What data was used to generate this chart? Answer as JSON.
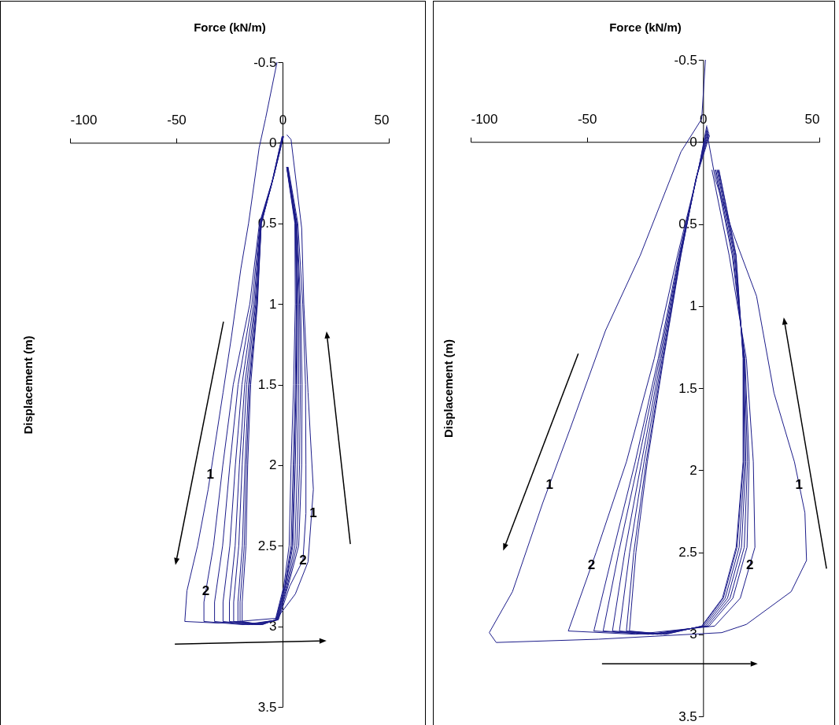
{
  "chart_data": [
    {
      "type": "line",
      "xlabel": "Force (kN/m)",
      "ylabel": "Displacement (m)",
      "xlim": [
        -100,
        50
      ],
      "ylim": [
        3.5,
        -0.5
      ],
      "xticks": [
        -100,
        -50,
        0,
        50
      ],
      "yticks": [
        -0.5,
        0,
        0.5,
        1,
        1.5,
        2,
        2.5,
        3,
        3.5
      ],
      "series": [
        {
          "color": "#1c1c8a",
          "x": [
            -2.6,
            -8,
            -11,
            -16,
            -19.6,
            -24,
            -28,
            -35,
            -40,
            -45,
            -46,
            -30,
            -2.6,
            6,
            12,
            14.5,
            13,
            12,
            10,
            9,
            4,
            2
          ],
          "values": [
            -0.5,
            -0.15,
            0.03,
            0.5,
            0.78,
            1.2,
            1.55,
            2.15,
            2.5,
            2.78,
            2.97,
            2.98,
            2.95,
            2.8,
            2.6,
            2.15,
            1.8,
            1.55,
            1.0,
            0.53,
            -0.02,
            -0.05
          ]
        },
        {
          "color": "#1c1c8a",
          "x": [
            0.5,
            -4,
            -10.9,
            -15.4,
            -23.2,
            -28.1,
            -32.5,
            -37,
            -37,
            -18.5,
            -2,
            3.4,
            9.6,
            11,
            11,
            10.8,
            9.5,
            7.2,
            2.6
          ],
          "values": [
            -0.04,
            0.2,
            0.5,
            1.0,
            1.5,
            2.0,
            2.5,
            2.85,
            2.97,
            2.99,
            2.96,
            2.75,
            2.59,
            2.3,
            2.0,
            1.5,
            1.0,
            0.5,
            0.15
          ]
        },
        {
          "color": "#1c1c8a",
          "x": [
            0.4,
            -4.2,
            -10.6,
            -14.4,
            -20.9,
            -24.8,
            -28.2,
            -32,
            -32,
            -16,
            -2.2,
            2.6,
            7.6,
            9,
            9.2,
            8.5,
            6.8,
            2.4
          ],
          "values": [
            -0.04,
            0.21,
            0.5,
            1.0,
            1.5,
            2.0,
            2.5,
            2.85,
            2.97,
            2.99,
            2.96,
            2.75,
            2.5,
            2.0,
            1.5,
            1.0,
            0.5,
            0.15
          ]
        },
        {
          "color": "#1c1c8a",
          "x": [
            0.3,
            -4.4,
            -10.4,
            -13.6,
            -19.1,
            -22.2,
            -24.8,
            -28,
            -28,
            -14,
            -2.4,
            2.2,
            6.7,
            8,
            8.4,
            8,
            6.6,
            2.3
          ],
          "values": [
            -0.04,
            0.22,
            0.5,
            1.0,
            1.5,
            2.0,
            2.5,
            2.85,
            2.97,
            2.99,
            2.96,
            2.75,
            2.5,
            2.0,
            1.5,
            1.0,
            0.5,
            0.15
          ]
        },
        {
          "color": "#1c1c8a",
          "x": [
            0.2,
            -4.6,
            -10.3,
            -13,
            -17.8,
            -20.3,
            -22.3,
            -25,
            -25,
            -12.5,
            -2.6,
            1.8,
            5.8,
            7,
            7.6,
            7.5,
            6.4,
            2.2
          ],
          "values": [
            -0.04,
            0.23,
            0.5,
            1.0,
            1.5,
            2.0,
            2.5,
            2.85,
            2.97,
            2.99,
            2.96,
            2.75,
            2.5,
            2.0,
            1.5,
            1.0,
            0.5,
            0.15
          ]
        },
        {
          "color": "#1c1c8a",
          "x": [
            0.1,
            -4.8,
            -10.2,
            -12.6,
            -16.9,
            -19,
            -20.6,
            -23,
            -23,
            -11.5,
            -2.8,
            1.4,
            4.9,
            6,
            6.8,
            7,
            6.2,
            2.1
          ],
          "values": [
            -0.04,
            0.24,
            0.5,
            1.0,
            1.5,
            2.0,
            2.5,
            2.85,
            2.97,
            2.99,
            2.96,
            2.75,
            2.5,
            2.0,
            1.5,
            1.0,
            0.5,
            0.15
          ]
        },
        {
          "color": "#1c1c8a",
          "x": [
            0,
            -5,
            -10,
            -12.2,
            -16,
            -17.7,
            -18.9,
            -21,
            -21,
            -10.5,
            -3,
            1.2,
            4.5,
            5.5,
            6.4,
            6.8,
            6.1,
            2
          ],
          "values": [
            -0.04,
            0.25,
            0.5,
            1.0,
            1.5,
            2.0,
            2.5,
            2.85,
            2.97,
            2.99,
            2.96,
            2.75,
            2.5,
            2.0,
            1.5,
            1.0,
            0.5,
            0.15
          ]
        },
        {
          "color": "#1c1c8a",
          "x": [
            -0.1,
            -5.2,
            -10,
            -12,
            -15.5,
            -17,
            -18,
            -20,
            -20,
            -10,
            -3.2,
            1,
            4,
            5,
            6,
            6.5,
            6,
            2
          ],
          "values": [
            -0.04,
            0.26,
            0.5,
            1.0,
            1.5,
            2.0,
            2.5,
            2.85,
            2.97,
            2.99,
            2.96,
            2.75,
            2.5,
            2.0,
            1.5,
            1.0,
            0.5,
            0.15
          ]
        },
        {
          "color": "#1c1c8a",
          "x": [
            -0.2,
            -5.4,
            -10,
            -11.8,
            -15,
            -16.4,
            -17.2,
            -19,
            -19,
            -9.5,
            -3.4,
            0.6,
            3.1,
            4,
            5.2,
            6,
            5.8,
            1.9
          ],
          "values": [
            -0.04,
            0.27,
            0.5,
            1.0,
            1.5,
            2.0,
            2.5,
            2.85,
            2.97,
            2.99,
            2.96,
            2.75,
            2.5,
            2.0,
            1.5,
            1.0,
            0.5,
            0.15
          ]
        }
      ],
      "annotations": [
        {
          "text": "1",
          "x": -34,
          "y": 2.06
        },
        {
          "text": "1",
          "x": 14.4,
          "y": 2.3
        },
        {
          "text": "2",
          "x": -36.1,
          "y": 2.78
        },
        {
          "text": "2",
          "x": 9.6,
          "y": 2.59
        }
      ]
    },
    {
      "type": "line",
      "xlabel": "Force (kN/m)",
      "ylabel": "Displacement (m)",
      "xlim": [
        -100,
        50
      ],
      "ylim": [
        3.5,
        -0.5
      ],
      "xticks": [
        -100,
        -50,
        0,
        50
      ],
      "yticks": [
        -0.5,
        0,
        0.5,
        1,
        1.5,
        2,
        2.5,
        3,
        3.5
      ],
      "series": [
        {
          "color": "#1c1c8a",
          "x": [
            1,
            -0.6,
            -9.5,
            -27,
            -42,
            -57,
            -69,
            -82,
            -92,
            -89,
            -45,
            8,
            18.6,
            37.9,
            44.5,
            43.8,
            39.3,
            30.5,
            23,
            12.7,
            5.3,
            1.6
          ],
          "values": [
            -0.5,
            -0.14,
            0.06,
            0.69,
            1.15,
            1.74,
            2.2,
            2.74,
            2.99,
            3.05,
            3.03,
            2.99,
            2.94,
            2.74,
            2.55,
            2.26,
            1.95,
            1.53,
            0.94,
            0.55,
            0.23,
            -0.06
          ]
        },
        {
          "color": "#1c1c8a",
          "x": [
            1.6,
            -2,
            -11,
            -21,
            -33,
            -46,
            -58,
            -29,
            5,
            16,
            22.3,
            21.6,
            18.6,
            11.2,
            3.8
          ],
          "values": [
            -0.1,
            0.17,
            0.69,
            1.32,
            1.95,
            2.5,
            2.98,
            3.0,
            2.95,
            2.78,
            2.47,
            1.95,
            1.32,
            0.69,
            0.17
          ]
        },
        {
          "color": "#1c1c8a",
          "x": [
            1.8,
            -2.2,
            -10.4,
            -19.3,
            -29.2,
            -38.8,
            -47,
            -23.5,
            2.6,
            12.8,
            18.9,
            19.8,
            18,
            12.5,
            5.1
          ],
          "values": [
            -0.09,
            0.18,
            0.69,
            1.32,
            1.95,
            2.5,
            2.98,
            3.0,
            2.95,
            2.78,
            2.47,
            1.95,
            1.32,
            0.69,
            0.17
          ]
        },
        {
          "color": "#1c1c8a",
          "x": [
            2,
            -2.4,
            -10.1,
            -18.7,
            -27.9,
            -36.3,
            -43,
            -21.5,
            1.8,
            11.6,
            17.7,
            19.1,
            17.8,
            12.9,
            5.5
          ],
          "values": [
            -0.08,
            0.19,
            0.69,
            1.32,
            1.95,
            2.5,
            2.98,
            3.0,
            2.95,
            2.78,
            2.47,
            1.95,
            1.32,
            0.69,
            0.17
          ]
        },
        {
          "color": "#1c1c8a",
          "x": [
            2.2,
            -2.6,
            -9.9,
            -18.1,
            -26.5,
            -33.7,
            -39,
            -19.5,
            1,
            10.5,
            16.5,
            18.4,
            17.6,
            13.4,
            6
          ],
          "values": [
            -0.07,
            0.2,
            0.69,
            1.32,
            1.95,
            2.5,
            2.98,
            3.0,
            2.95,
            2.78,
            2.47,
            1.95,
            1.32,
            0.69,
            0.17
          ]
        },
        {
          "color": "#1c1c8a",
          "x": [
            2.4,
            -2.8,
            -9.7,
            -17.6,
            -25.4,
            -31.6,
            -36,
            -18,
            0.3,
            9.5,
            15.5,
            17.9,
            17.4,
            13.7,
            6.3
          ],
          "values": [
            -0.06,
            0.21,
            0.69,
            1.32,
            1.95,
            2.5,
            2.98,
            3.0,
            2.95,
            2.78,
            2.47,
            1.95,
            1.32,
            0.69,
            0.17
          ]
        },
        {
          "color": "#1c1c8a",
          "x": [
            2.6,
            -3,
            -9.6,
            -17.2,
            -24.5,
            -29.8,
            -33,
            -16.5,
            -0.3,
            8.7,
            14.6,
            17.4,
            17.3,
            14.1,
            6.7
          ],
          "values": [
            -0.05,
            0.22,
            0.69,
            1.32,
            1.95,
            2.5,
            2.98,
            3.0,
            2.95,
            2.78,
            2.47,
            1.95,
            1.32,
            0.69,
            0.17
          ]
        },
        {
          "color": "#1c1c8a",
          "x": [
            2.8,
            -3.2,
            -9.5,
            -17,
            -24,
            -28.9,
            -31.7,
            -15.9,
            -0.6,
            8.3,
            14.2,
            17.2,
            17.2,
            14.2,
            6.8
          ],
          "values": [
            -0.04,
            0.23,
            0.69,
            1.32,
            1.95,
            2.5,
            2.98,
            3.0,
            2.95,
            2.78,
            2.47,
            1.95,
            1.32,
            0.69,
            0.17
          ]
        }
      ],
      "annotations": [
        {
          "text": "1",
          "x": -66.1,
          "y": 2.09
        },
        {
          "text": "1",
          "x": 41.3,
          "y": 2.09
        },
        {
          "text": "2",
          "x": -48,
          "y": 2.58
        },
        {
          "text": "2",
          "x": 20.1,
          "y": 2.58
        }
      ]
    }
  ]
}
